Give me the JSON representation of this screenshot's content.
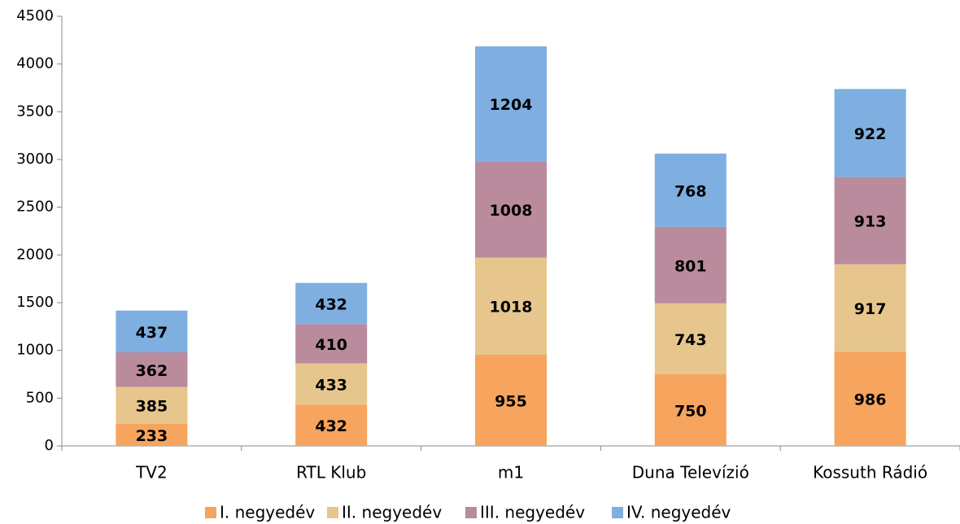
{
  "chart_data": {
    "type": "stacked_bar",
    "categories": [
      "TV2",
      "RTL Klub",
      "m1",
      "Duna Televízió",
      "Kossuth Rádió"
    ],
    "series": [
      {
        "name": "I. negyedév",
        "color": "#f6a45e",
        "values": [
          233,
          432,
          955,
          750,
          986
        ]
      },
      {
        "name": "II. negyedév",
        "color": "#e6c68d",
        "values": [
          385,
          433,
          1018,
          743,
          917
        ]
      },
      {
        "name": "III. negyedév",
        "color": "#b98b9d",
        "values": [
          362,
          410,
          1008,
          801,
          913
        ]
      },
      {
        "name": "IV. negyedév",
        "color": "#7eafe0",
        "values": [
          437,
          432,
          1204,
          768,
          922
        ]
      }
    ],
    "ylim": [
      0,
      4500
    ],
    "yticks": [
      0,
      500,
      1000,
      1500,
      2000,
      2500,
      3000,
      3500,
      4000,
      4500
    ],
    "grid": false,
    "legend": "bottom"
  }
}
